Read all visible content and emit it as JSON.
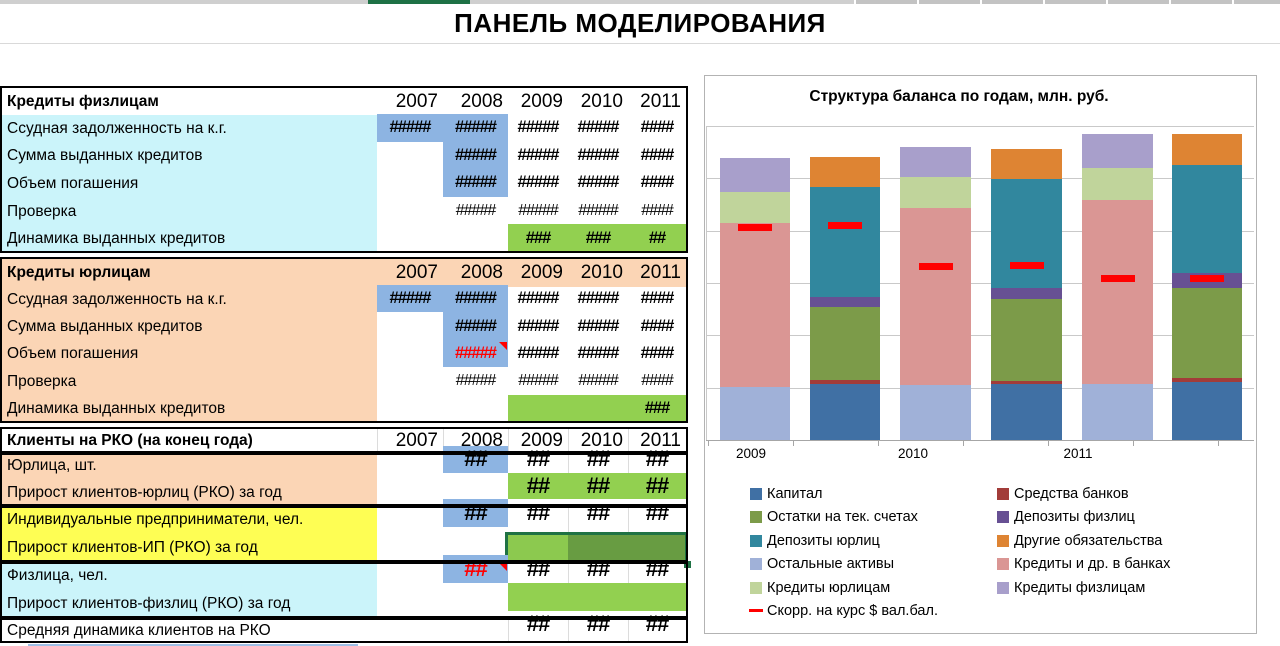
{
  "app": {
    "title": "ПАНЕЛЬ МОДЕЛИРОВАНИЯ"
  },
  "years": [
    "2007",
    "2008",
    "2009",
    "2010",
    "2011"
  ],
  "palette": {
    "cell_blue": "#8DB4E2",
    "cell_green": "#92D050",
    "label_cyan": "#CBF4FA",
    "label_peach": "#FBD5B5",
    "label_yellow": "#FEFE54",
    "selection_light": "#8CC94F",
    "selection_dark": "#689C42",
    "selection_border": "#1F7244",
    "error_red": "#FF0000"
  },
  "table": {
    "sections": [
      {
        "header": "Кредиты физлицам",
        "label_bg": "cyan",
        "rows": [
          {
            "label": "Ссудная задолженность на к.г.",
            "cells": [
              [
                "2007",
                "#####",
                "blue"
              ],
              [
                "2008",
                "#####",
                "blue"
              ],
              [
                "2009",
                "#####",
                "white"
              ],
              [
                "2010",
                "#####",
                "white"
              ],
              [
                "2011",
                "####",
                "white"
              ]
            ]
          },
          {
            "label": "Сумма выданных кредитов",
            "cells": [
              [
                "2008",
                "#####",
                "blue"
              ],
              [
                "2009",
                "#####",
                "white"
              ],
              [
                "2010",
                "#####",
                "white"
              ],
              [
                "2011",
                "####",
                "white"
              ]
            ]
          },
          {
            "label": "Объем погашения",
            "cells": [
              [
                "2008",
                "#####",
                "blue"
              ],
              [
                "2009",
                "#####",
                "white"
              ],
              [
                "2010",
                "#####",
                "white"
              ],
              [
                "2011",
                "####",
                "white"
              ]
            ]
          },
          {
            "label": "Проверка",
            "light": true,
            "cells": [
              [
                "2008",
                "#####",
                "white"
              ],
              [
                "2009",
                "#####",
                "white"
              ],
              [
                "2010",
                "#####",
                "white"
              ],
              [
                "2011",
                "####",
                "white"
              ]
            ]
          },
          {
            "label": "Динамика выданных кредитов",
            "cells": [
              [
                "2009",
                "###",
                "green"
              ],
              [
                "2010",
                "###",
                "green"
              ],
              [
                "2011",
                "##",
                "green"
              ]
            ]
          }
        ]
      },
      {
        "header": "Кредиты юрлицам",
        "label_bg": "peach",
        "header_bg": "peach",
        "rows": [
          {
            "label": "Ссудная задолженность на к.г.",
            "cells": [
              [
                "2007",
                "#####",
                "blue"
              ],
              [
                "2008",
                "#####",
                "blue"
              ],
              [
                "2009",
                "#####",
                "white"
              ],
              [
                "2010",
                "#####",
                "white"
              ],
              [
                "2011",
                "####",
                "white"
              ]
            ]
          },
          {
            "label": "Сумма выданных кредитов",
            "cells": [
              [
                "2008",
                "#####",
                "blue"
              ],
              [
                "2009",
                "#####",
                "white"
              ],
              [
                "2010",
                "#####",
                "white"
              ],
              [
                "2011",
                "####",
                "white"
              ]
            ]
          },
          {
            "label": "Объем погашения",
            "cells": [
              [
                "2008",
                "#####",
                "blue",
                "red",
                "marker"
              ],
              [
                "2009",
                "#####",
                "white"
              ],
              [
                "2010",
                "#####",
                "white"
              ],
              [
                "2011",
                "####",
                "white"
              ]
            ]
          },
          {
            "label": "Проверка",
            "light": true,
            "cells": [
              [
                "2008",
                "#####",
                "white"
              ],
              [
                "2009",
                "#####",
                "white"
              ],
              [
                "2010",
                "#####",
                "white"
              ],
              [
                "2011",
                "####",
                "white"
              ]
            ]
          },
          {
            "label": "Динамика выданных кредитов",
            "cells": [
              [
                "2009",
                "",
                "green"
              ],
              [
                "2010",
                "",
                "green"
              ],
              [
                "2011",
                "###",
                "green"
              ]
            ]
          }
        ]
      },
      {
        "header": "Клиенты на РКО (на конец года)",
        "rows": [
          {
            "label": "Юрлица, шт.",
            "label_bg": "peach",
            "sep": [
              568,
              628
            ],
            "cells": [
              [
                "2008",
                "##",
                "blue"
              ],
              [
                "2009",
                "##",
                "white"
              ],
              [
                "2010",
                "##",
                "white"
              ],
              [
                "2011",
                "##",
                "white"
              ]
            ]
          },
          {
            "label": "Прирост клиентов-юрлиц (РКО) за год",
            "label_bg": "peach",
            "cells": [
              [
                "2009",
                "##",
                "green"
              ],
              [
                "2010",
                "##",
                "green"
              ],
              [
                "2011",
                "##",
                "green"
              ]
            ]
          },
          {
            "label": "Индивидуальные предприниматели, чел.",
            "label_bg": "yellow",
            "sep": [
              568,
              628
            ],
            "cells": [
              [
                "2008",
                "##",
                "blue"
              ],
              [
                "2009",
                "##",
                "white"
              ],
              [
                "2010",
                "##",
                "white"
              ],
              [
                "2011",
                "##",
                "white"
              ]
            ]
          },
          {
            "label": "Прирост клиентов-ИП (РКО) за год",
            "label_bg": "yellow",
            "selection": true,
            "cells": []
          },
          {
            "label": "Физлица, чел.",
            "label_bg": "cyan",
            "sep": [
              568,
              628
            ],
            "cells": [
              [
                "2008",
                "##",
                "blue",
                "red",
                "marker"
              ],
              [
                "2009",
                "##",
                "white"
              ],
              [
                "2010",
                "##",
                "white"
              ],
              [
                "2011",
                "##",
                "white"
              ]
            ]
          },
          {
            "label": "Прирост клиентов-физлиц (РКО) за год",
            "label_bg": "cyan",
            "cells": [
              [
                "2009",
                "",
                "green"
              ],
              [
                "2010",
                "",
                "green"
              ],
              [
                "2011",
                "",
                "green"
              ]
            ]
          },
          {
            "label": "Средняя динамика клиентов на РКО",
            "label_bg": "white",
            "sep": [
              508,
              568,
              628
            ],
            "cells": [
              [
                "2009",
                "##",
                "white"
              ],
              [
                "2010",
                "##",
                "white"
              ],
              [
                "2011",
                "##",
                "white"
              ]
            ]
          }
        ]
      }
    ]
  },
  "chart_data": {
    "type": "bar",
    "stacked": true,
    "title": "Структура баланса по годам, млн. руб.",
    "categories": [
      "2009",
      "2010",
      "2011"
    ],
    "bars_per_category": 2,
    "y_axis": {
      "tick_labels_visible": false,
      "gridline_count": 6,
      "value_unit": "деления сетки (подписи оси скрыты)"
    },
    "series": [
      {
        "name": "Остальные активы",
        "stack": "left",
        "color": "#A0B1D8",
        "values": [
          1.01,
          1.05,
          1.07
        ]
      },
      {
        "name": "Кредиты и др. в банках",
        "stack": "left",
        "color": "#DA9694",
        "values": [
          3.13,
          3.38,
          3.52
        ]
      },
      {
        "name": "Кредиты юрлицам",
        "stack": "left",
        "color": "#C0D49B",
        "values": [
          0.6,
          0.59,
          0.61
        ]
      },
      {
        "name": "Кредиты физлицам",
        "stack": "left",
        "color": "#A89FCB",
        "values": [
          0.64,
          0.57,
          0.65
        ]
      },
      {
        "name": "Капитал",
        "stack": "right",
        "color": "#4070A4",
        "values": [
          1.07,
          1.07,
          1.11
        ]
      },
      {
        "name": "Средства банков",
        "stack": "right",
        "color": "#A23C39",
        "values": [
          0.07,
          0.06,
          0.07
        ]
      },
      {
        "name": "Остатки на тек. счетах",
        "stack": "right",
        "color": "#7C9B49",
        "values": [
          1.41,
          1.57,
          1.72
        ]
      },
      {
        "name": "Депозиты физлиц",
        "stack": "right",
        "color": "#675093",
        "values": [
          0.18,
          0.2,
          0.29
        ]
      },
      {
        "name": "Депозиты юрлиц",
        "stack": "right",
        "color": "#31879E",
        "values": [
          2.1,
          2.08,
          2.06
        ]
      },
      {
        "name": "Другие обязательства",
        "stack": "right",
        "color": "#DE8433",
        "values": [
          0.57,
          0.59,
          0.59
        ]
      }
    ],
    "overlay_series": {
      "name": "Скорр. на курс $ вал.бал.",
      "color": "#FF0000",
      "left_bar_values": [
        4.07,
        3.31,
        3.09
      ],
      "right_bar_values": [
        4.09,
        3.33,
        3.09
      ]
    },
    "legend": {
      "left": [
        [
          "Капитал",
          "#4070A4",
          "box"
        ],
        [
          "Остатки на тек. счетах",
          "#7C9B49",
          "box"
        ],
        [
          "Депозиты юрлиц",
          "#31879E",
          "box"
        ],
        [
          "Остальные активы",
          "#A0B1D8",
          "box"
        ],
        [
          "Кредиты юрлицам",
          "#C0D49B",
          "box"
        ],
        [
          "Скорр. на курс $ вал.бал.",
          "#FF0000",
          "dash"
        ]
      ],
      "right": [
        [
          "Средства банков",
          "#A23C39",
          "box"
        ],
        [
          "Депозиты физлиц",
          "#675093",
          "box"
        ],
        [
          "Другие обязательства",
          "#DE8433",
          "box"
        ],
        [
          "Кредиты и др. в банках",
          "#DA9694",
          "box"
        ],
        [
          "Кредиты физлицам",
          "#A89FCB",
          "box"
        ]
      ]
    }
  }
}
